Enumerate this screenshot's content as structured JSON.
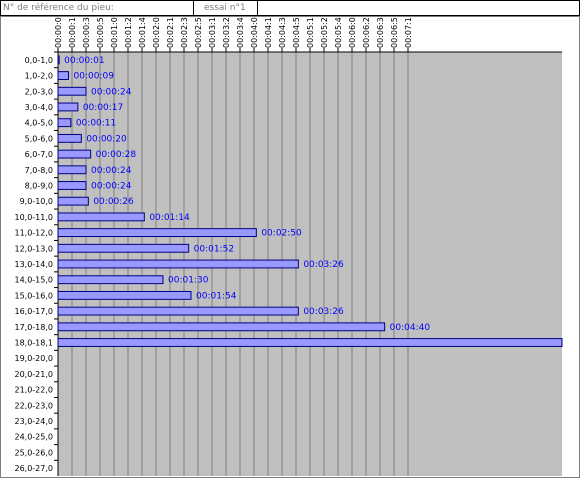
{
  "header": {
    "reference_label": "N° de référence du pieu:",
    "trial_label": "essai n°1",
    "empty_value": ""
  },
  "colors": {
    "plot_bg": "#c0c0c0",
    "bar_fill": "#9999ff",
    "bar_stroke": "#000080",
    "label_color": "#0000ff",
    "grid": "#ffffff",
    "axis": "#000000"
  },
  "chart_data": {
    "type": "bar",
    "orientation": "horizontal",
    "title": "",
    "xlabel": "",
    "ylabel": "",
    "x_unit": "seconds",
    "xlim": [
      0,
      432
    ],
    "x_tick_step": 12,
    "x_tick_labels": [
      "00:00:0",
      "00:00:1",
      "00:00:3",
      "00:00:5",
      "00:01:0",
      "00:01:2",
      "00:01:4",
      "00:02:0",
      "00:02:1",
      "00:02:3",
      "00:02:5",
      "00:03:1",
      "00:03:2",
      "00:03:4",
      "00:04:0",
      "00:04:1",
      "00:04:3",
      "00:04:5",
      "00:05:1",
      "00:05:2",
      "00:05:4",
      "00:06:0",
      "00:06:2",
      "00:06:3",
      "00:06:5",
      "00:07:1"
    ],
    "grid": true,
    "legend": "none",
    "categories": [
      "0,0-1,0",
      "1,0-2,0",
      "2,0-3,0",
      "3,0-4,0",
      "4,0-5,0",
      "5,0-6,0",
      "6,0-7,0",
      "7,0-8,0",
      "8,0-9,0",
      "9,0-10,0",
      "10,0-11,0",
      "11,0-12,0",
      "12,0-13,0",
      "13,0-14,0",
      "14,0-15,0",
      "15,0-16,0",
      "16,0-17,0",
      "17,0-18,0",
      "18,0-18,1",
      "19,0-20,0",
      "20,0-21,0",
      "21,0-22,0",
      "22,0-23,0",
      "23,0-24,0",
      "24,0-25,0",
      "25,0-26,0",
      "26,0-27,0"
    ],
    "values": [
      1,
      9,
      24,
      17,
      11,
      20,
      28,
      24,
      24,
      26,
      74,
      170,
      112,
      206,
      90,
      114,
      206,
      280,
      432,
      null,
      null,
      null,
      null,
      null,
      null,
      null,
      null
    ],
    "data_labels": [
      "00:00:01",
      "00:00:09",
      "00:00:24",
      "00:00:17",
      "00:00:11",
      "00:00:20",
      "00:00:28",
      "00:00:24",
      "00:00:24",
      "00:00:26",
      "00:01:14",
      "00:02:50",
      "00:01:52",
      "00:03:26",
      "00:01:30",
      "00:01:54",
      "00:03:26",
      "00:04:40",
      "",
      "",
      "",
      "",
      "",
      "",
      "",
      "",
      ""
    ]
  }
}
